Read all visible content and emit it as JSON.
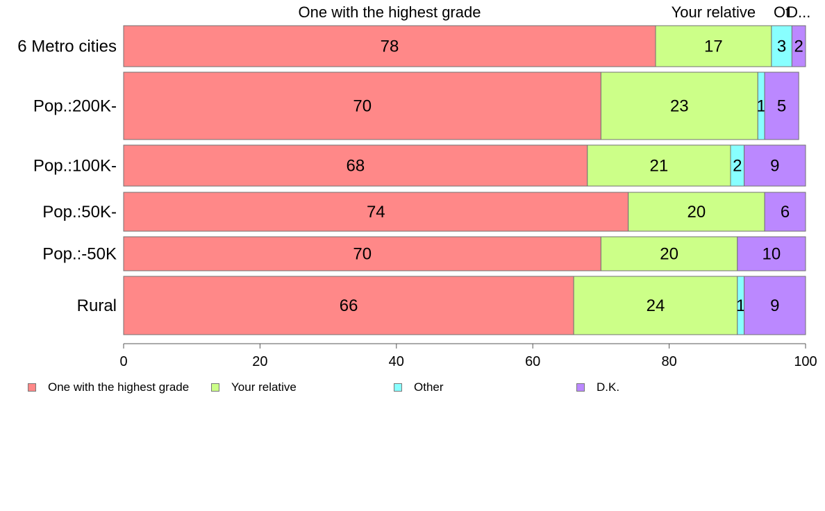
{
  "chart_data": {
    "type": "bar",
    "orientation": "horizontal",
    "stacked": true,
    "categories": [
      "6 Metro cities",
      "Pop.:200K-",
      "Pop.:100K-",
      "Pop.:50K-",
      "Pop.:-50K",
      "Rural"
    ],
    "series": [
      {
        "name": "One with the highest grade",
        "color": "#ff8888",
        "values": [
          78,
          70,
          68,
          74,
          70,
          66
        ]
      },
      {
        "name": "Your relative",
        "color": "#ccff88",
        "values": [
          17,
          23,
          21,
          20,
          20,
          24
        ]
      },
      {
        "name": "Other",
        "color": "#88ffff",
        "values": [
          3,
          1,
          2,
          0,
          0,
          1
        ]
      },
      {
        "name": "D.K.",
        "color": "#bb88ff",
        "values": [
          2,
          5,
          9,
          6,
          10,
          9
        ]
      }
    ],
    "data_labels": [
      [
        "78",
        "17",
        "3",
        "2"
      ],
      [
        "70",
        "23",
        "1",
        "5"
      ],
      [
        "68",
        "21",
        "2",
        "9"
      ],
      [
        "74",
        "20",
        "",
        "6"
      ],
      [
        "70",
        "20",
        "",
        "10"
      ],
      [
        "66",
        "24",
        "1",
        "9"
      ]
    ],
    "top_labels": [
      "One with the highest grade",
      "Your relative",
      "Ot",
      "D..."
    ],
    "x_ticks": [
      "0",
      "20",
      "40",
      "60",
      "80",
      "100"
    ],
    "xlim": [
      0,
      100
    ],
    "xlabel": "",
    "ylabel": "",
    "title": "",
    "grid": false,
    "legend_position": "bottom"
  }
}
